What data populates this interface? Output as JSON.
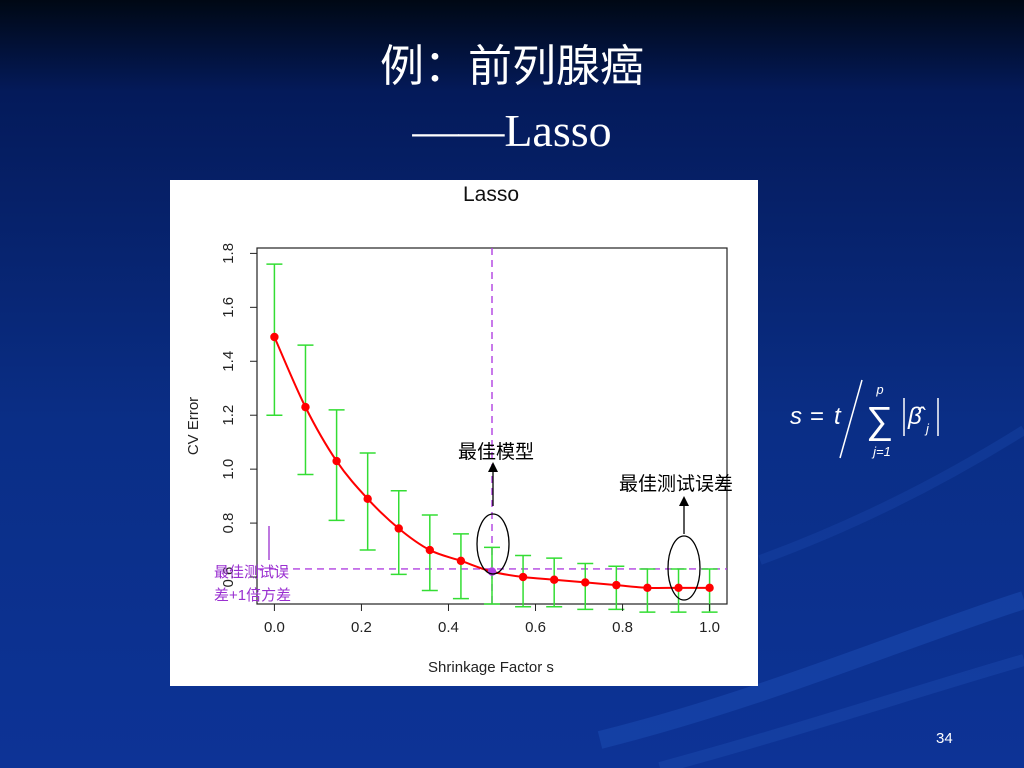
{
  "slide": {
    "title": "例：前列腺癌",
    "subtitle": "——Lasso",
    "page_number": "34"
  },
  "formula": {
    "lhs": "s",
    "eq": "=",
    "t": "t",
    "sum_upper": "p",
    "sum_lower": "j=1",
    "beta": "β̂",
    "beta_sub": "j"
  },
  "annotations": {
    "best_model": "最佳模型",
    "best_test_error": "最佳测试误差",
    "one_se_line1": "最佳测试误",
    "one_se_line2": "差+1倍方差"
  },
  "colors": {
    "curve": "#ff0000",
    "points": "#ff0000",
    "error_bars": "#33dd33",
    "reference_lines": "#b040e0",
    "annotation_purple": "#9a30d0"
  },
  "chart_data": {
    "type": "scatter",
    "title": "Lasso",
    "xlabel": "Shrinkage Factor s",
    "ylabel": "CV Error",
    "xlim": [
      -0.04,
      1.04
    ],
    "ylim": [
      0.5,
      1.82
    ],
    "xticks": [
      "0.0",
      "0.2",
      "0.4",
      "0.6",
      "0.8",
      "1.0"
    ],
    "yticks": [
      "0.6",
      "0.8",
      "1.0",
      "1.2",
      "1.4",
      "1.6",
      "1.8"
    ],
    "grid": false,
    "series": [
      {
        "x": [
          0.0,
          0.0714,
          0.1429,
          0.2143,
          0.2857,
          0.3571,
          0.4286,
          0.5,
          0.5714,
          0.6429,
          0.7143,
          0.7857,
          0.8571,
          0.9286,
          1.0
        ],
        "y": [
          1.49,
          1.23,
          1.03,
          0.89,
          0.78,
          0.7,
          0.66,
          0.62,
          0.6,
          0.59,
          0.58,
          0.57,
          0.56,
          0.56,
          0.56
        ],
        "y_lower": [
          1.2,
          0.98,
          0.81,
          0.7,
          0.61,
          0.55,
          0.52,
          0.5,
          0.49,
          0.49,
          0.48,
          0.48,
          0.47,
          0.47,
          0.47
        ],
        "y_upper": [
          1.76,
          1.46,
          1.22,
          1.06,
          0.92,
          0.83,
          0.76,
          0.71,
          0.68,
          0.67,
          0.65,
          0.64,
          0.63,
          0.63,
          0.63
        ]
      }
    ],
    "reference_lines": {
      "vertical_x": 0.5,
      "horizontal_y": 0.63
    }
  }
}
